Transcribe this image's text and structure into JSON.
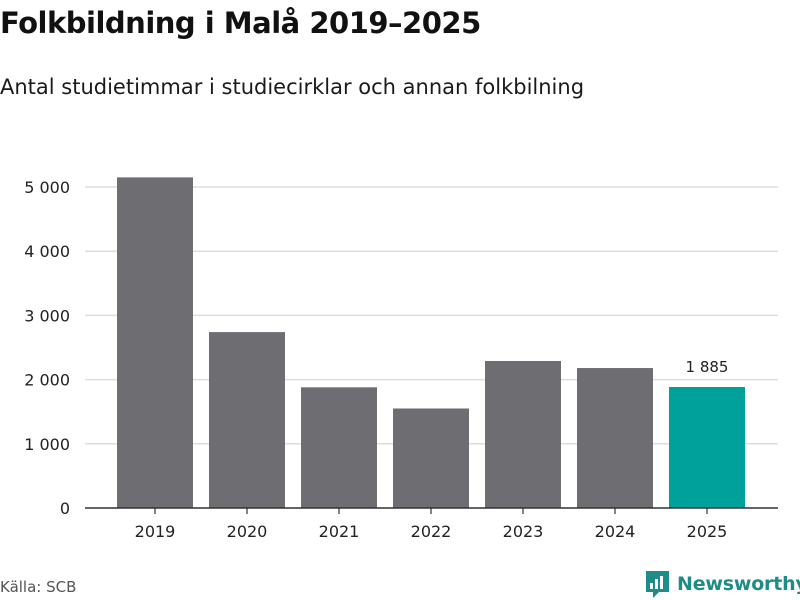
{
  "chart_data": {
    "type": "bar",
    "title": "Folkbildning i Malå 2019–2025",
    "subtitle": "Antal studietimmar i studiecirklar och annan folkbilning",
    "categories": [
      "2019",
      "2020",
      "2021",
      "2022",
      "2023",
      "2024",
      "2025"
    ],
    "values": [
      5150,
      2740,
      1880,
      1550,
      2290,
      2180,
      1885
    ],
    "highlight_index": 6,
    "data_labels": [
      {
        "index": 6,
        "text": "1 885"
      }
    ],
    "yticks": [
      0,
      1000,
      2000,
      3000,
      4000,
      5000
    ],
    "ytick_labels": [
      "0",
      "1 000",
      "2 000",
      "3 000",
      "4 000",
      "5 000"
    ],
    "ylim": [
      0,
      5000
    ],
    "xlabel": "",
    "ylabel": "",
    "grid": true
  },
  "footer": {
    "source": "Källa: SCB",
    "brand": "Newsworthy"
  },
  "colors": {
    "bar": "#6e6d72",
    "highlight": "#00a19a",
    "grid": "#dddddd",
    "axis": "#333333",
    "brand": "#1e8c87"
  },
  "icons": {
    "brand_logo": "newsworthy-logo-icon"
  }
}
